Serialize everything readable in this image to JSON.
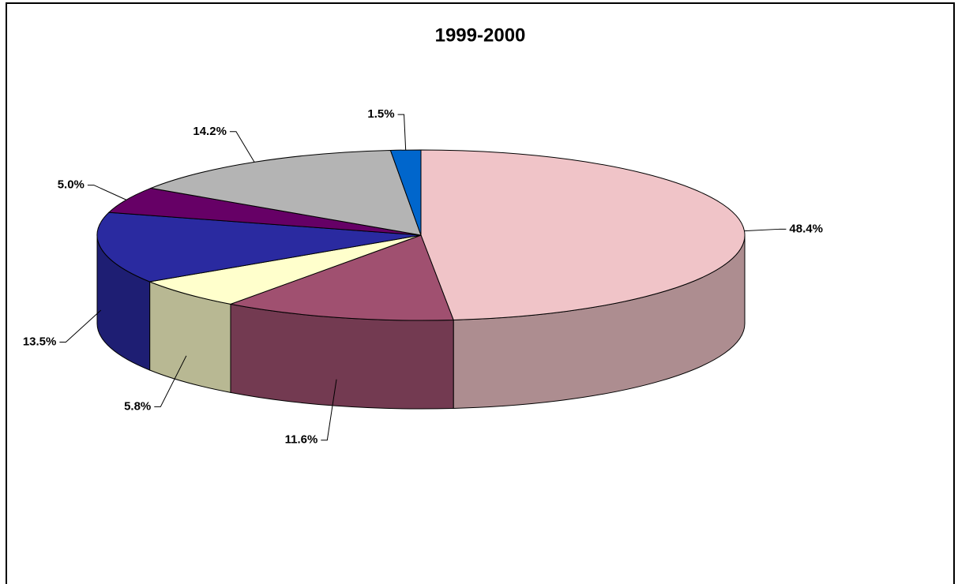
{
  "chart_data": {
    "type": "pie3d",
    "title": "1999-2000",
    "values": [
      48.4,
      11.6,
      5.8,
      13.5,
      5.0,
      14.2,
      1.5
    ],
    "value_labels": [
      "48.4%",
      "11.6%",
      "5.8%",
      "13.5%",
      "5.0%",
      "14.2%",
      "1.5%"
    ],
    "colors": [
      "#f0c4c8",
      "#a05070",
      "#ffffcc",
      "#2a2aa0",
      "#660066",
      "#b4b4b4",
      "#0066cc"
    ]
  }
}
